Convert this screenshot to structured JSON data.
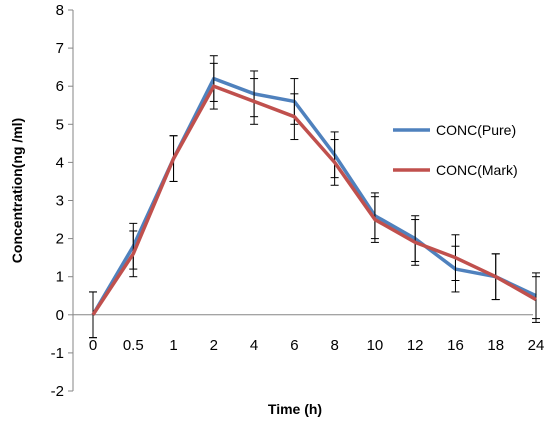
{
  "chart_data": {
    "type": "line",
    "categories": [
      "0",
      "0.5",
      "1",
      "2",
      "4",
      "6",
      "8",
      "10",
      "12",
      "16",
      "18",
      "24"
    ],
    "series": [
      {
        "name": "CONC(Pure)",
        "color": "#4F81BD",
        "values": [
          0,
          1.8,
          4.1,
          6.2,
          5.8,
          5.6,
          4.2,
          2.6,
          2.0,
          1.2,
          1.0,
          0.5
        ],
        "error": [
          0.6,
          0.6,
          0.6,
          0.6,
          0.6,
          0.6,
          0.6,
          0.6,
          0.6,
          0.6,
          0.6,
          0.6
        ]
      },
      {
        "name": "CONC(Mark)",
        "color": "#C0504D",
        "values": [
          0,
          1.6,
          4.1,
          6.0,
          5.6,
          5.2,
          4.0,
          2.5,
          1.9,
          1.5,
          1.0,
          0.4
        ],
        "error": [
          0.6,
          0.6,
          0.6,
          0.6,
          0.6,
          0.6,
          0.6,
          0.6,
          0.6,
          0.6,
          0.6,
          0.6
        ]
      }
    ],
    "xlabel": "Time  (h)",
    "ylabel": "Concentration(ng /ml)",
    "ylim": [
      -2,
      8
    ],
    "yticks": [
      "-2",
      "-1",
      "0",
      "1",
      "2",
      "3",
      "4",
      "5",
      "6",
      "7",
      "8"
    ],
    "grid": false,
    "legend": "right"
  }
}
